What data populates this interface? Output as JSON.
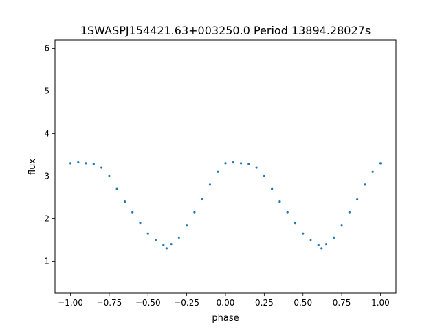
{
  "chart_data": {
    "type": "scatter",
    "title": "1SWASPJ154421.63+003250.0 Period 13894.28027s",
    "xlabel": "phase",
    "ylabel": "flux",
    "xlim": [
      -1.1,
      1.1
    ],
    "ylim": [
      0.25,
      6.2
    ],
    "xticks": [
      -1.0,
      -0.75,
      -0.5,
      -0.25,
      0.0,
      0.25,
      0.5,
      0.75,
      1.0
    ],
    "xtick_labels": [
      "−1.00",
      "−0.75",
      "−0.50",
      "−0.25",
      "0.00",
      "0.25",
      "0.50",
      "0.75",
      "1.00"
    ],
    "yticks": [
      1,
      2,
      3,
      4,
      5,
      6
    ],
    "ytick_labels": [
      "1",
      "2",
      "3",
      "4",
      "5",
      "6"
    ],
    "grid": false,
    "legend": "none",
    "marker_color": "#1f77b4",
    "series": [
      {
        "values": [
          [
            -1.0,
            3.3
          ],
          [
            -0.95,
            3.32
          ],
          [
            -0.9,
            3.3
          ],
          [
            -0.85,
            3.28
          ],
          [
            -0.8,
            3.2
          ],
          [
            -0.75,
            3.0
          ],
          [
            -0.7,
            2.7
          ],
          [
            -0.65,
            2.4
          ],
          [
            -0.6,
            2.15
          ],
          [
            -0.55,
            1.9
          ],
          [
            -0.5,
            1.65
          ],
          [
            -0.45,
            1.5
          ],
          [
            -0.4,
            1.38
          ],
          [
            -0.38,
            1.3
          ],
          [
            -0.35,
            1.4
          ],
          [
            -0.3,
            1.55
          ],
          [
            -0.25,
            1.85
          ],
          [
            -0.2,
            2.15
          ],
          [
            -0.15,
            2.45
          ],
          [
            -0.1,
            2.8
          ],
          [
            -0.05,
            3.1
          ],
          [
            0.0,
            3.3
          ],
          [
            0.05,
            3.32
          ],
          [
            0.1,
            3.3
          ],
          [
            0.15,
            3.28
          ],
          [
            0.2,
            3.2
          ],
          [
            0.25,
            3.0
          ],
          [
            0.3,
            2.7
          ],
          [
            0.35,
            2.4
          ],
          [
            0.4,
            2.15
          ],
          [
            0.45,
            1.9
          ],
          [
            0.5,
            1.65
          ],
          [
            0.55,
            1.5
          ],
          [
            0.6,
            1.38
          ],
          [
            0.62,
            1.3
          ],
          [
            0.65,
            1.4
          ],
          [
            0.7,
            1.55
          ],
          [
            0.75,
            1.85
          ],
          [
            0.8,
            2.15
          ],
          [
            0.85,
            2.45
          ],
          [
            0.9,
            2.8
          ],
          [
            0.95,
            3.1
          ],
          [
            1.0,
            3.3
          ]
        ]
      }
    ]
  }
}
